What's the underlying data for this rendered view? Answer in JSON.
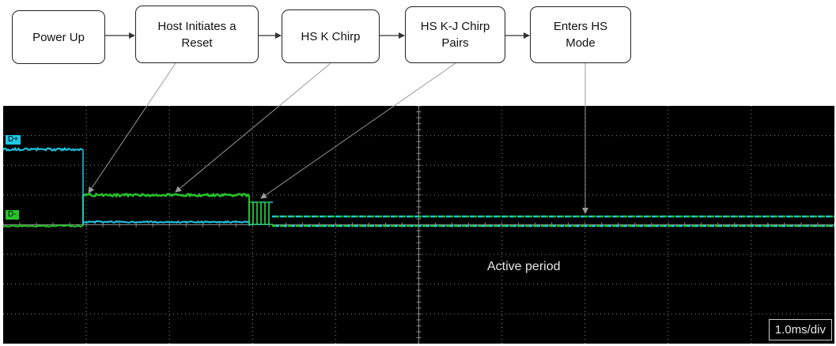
{
  "flow": {
    "steps": [
      {
        "label": "Power Up"
      },
      {
        "label": "Host Initiates a\nReset"
      },
      {
        "label": "HS K Chirp"
      },
      {
        "label": "HS K-J Chirp\nPairs"
      },
      {
        "label": "Enters HS\nMode"
      }
    ]
  },
  "scope": {
    "channels": [
      {
        "label": "D+",
        "color": "#1ec8e6"
      },
      {
        "label": "D-",
        "color": "#25c52a"
      }
    ],
    "annotation": "Active period",
    "timebase": "1.0ms/div",
    "colors": {
      "background": "#000000",
      "grid": "#8a8a8a"
    }
  }
}
